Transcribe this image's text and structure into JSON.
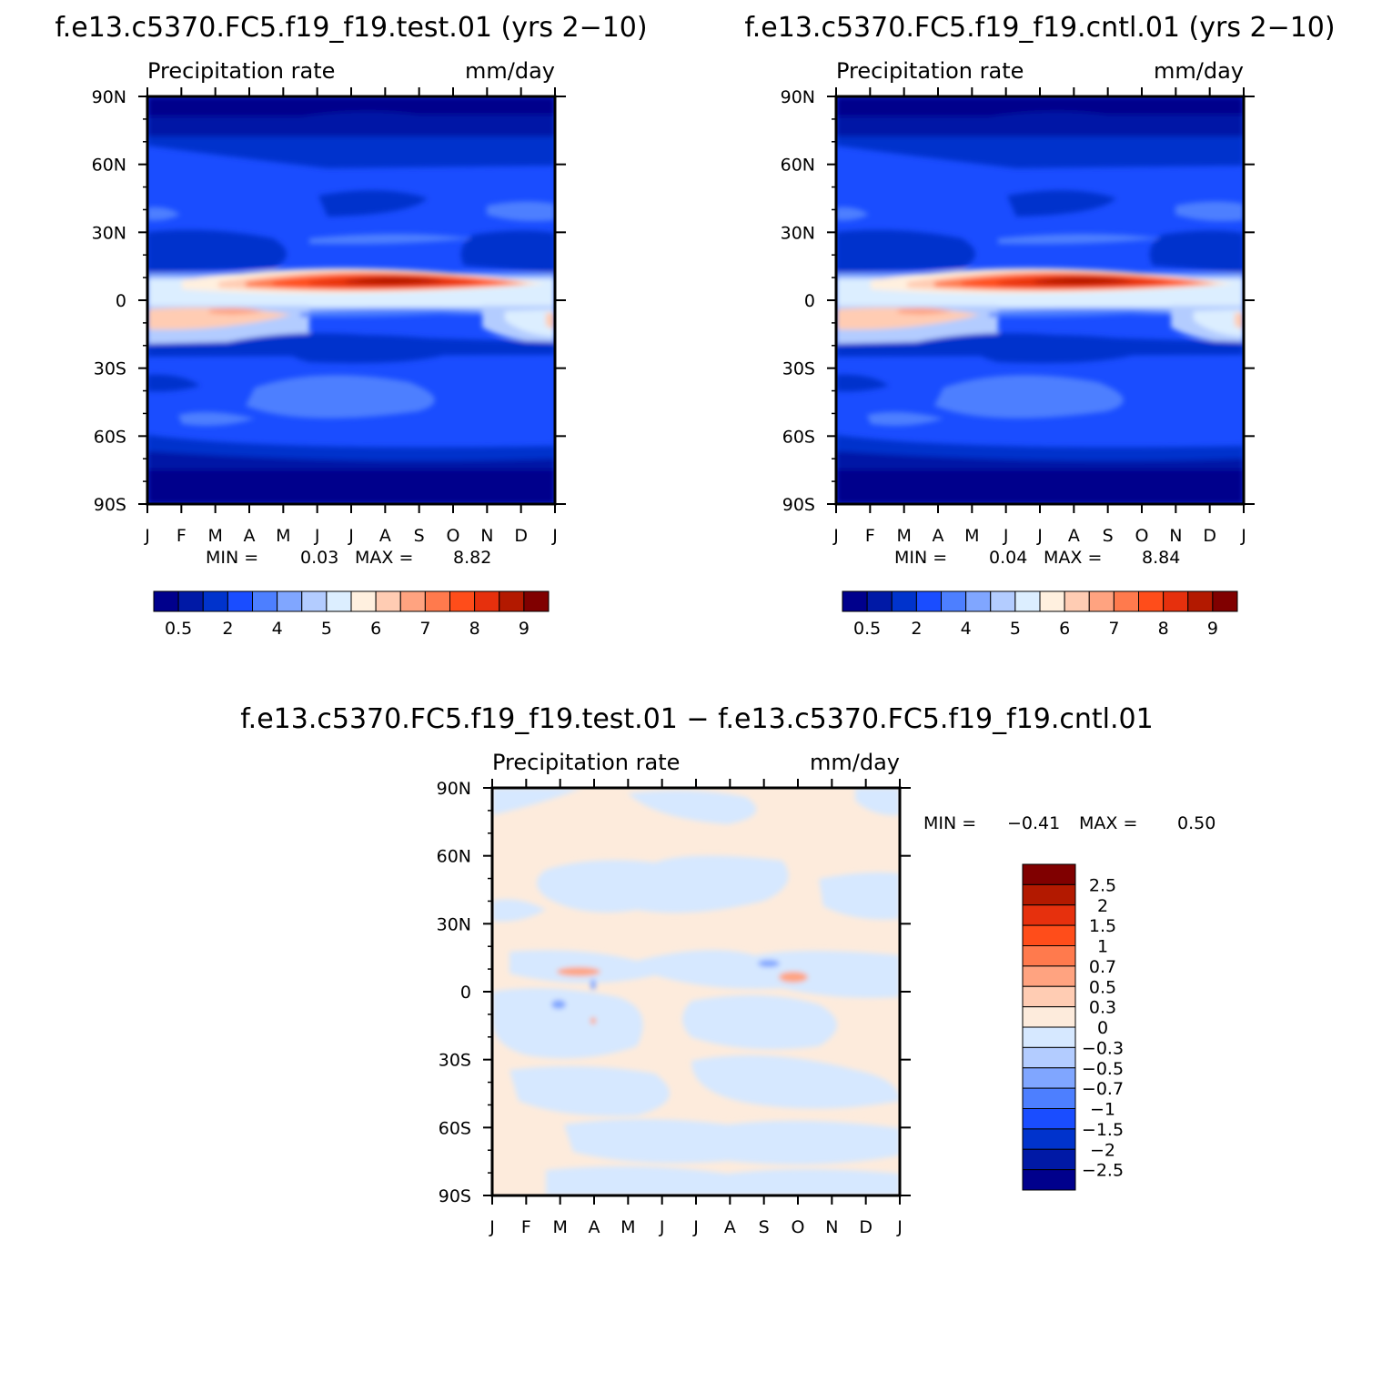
{
  "colors": {
    "precip_palette": [
      "#00008c",
      "#0019a6",
      "#0033cc",
      "#1a4dff",
      "#4d7fff",
      "#80a6ff",
      "#b3ccff",
      "#dceeff",
      "#fff0df",
      "#ffccb3",
      "#ffa380",
      "#ff7a4d",
      "#ff4d1a",
      "#e6300d",
      "#b31900",
      "#800000"
    ],
    "diff_palette": [
      "#800000",
      "#b31900",
      "#e6300d",
      "#ff4d1a",
      "#ff7a4d",
      "#ffa380",
      "#ffccb3",
      "#fdebdc",
      "#d6e8ff",
      "#b3ccff",
      "#80a6ff",
      "#4d7fff",
      "#1a4dff",
      "#0033cc",
      "#0019a6",
      "#00008c"
    ]
  },
  "chart_data": [
    {
      "type": "heatmap",
      "title": "f.e13.c5370.FC5.f19_f19.test.01 (yrs 2−10)",
      "left_subtitle": "Precipitation rate",
      "right_subtitle": "mm/day",
      "x_tick_labels": [
        "J",
        "F",
        "M",
        "A",
        "M",
        "J",
        "J",
        "A",
        "S",
        "O",
        "N",
        "D",
        "J"
      ],
      "y_tick_labels": [
        "90N",
        "60N",
        "30N",
        "0",
        "30S",
        "60S",
        "90S"
      ],
      "y_values": [
        90,
        60,
        30,
        0,
        -30,
        -60,
        -90
      ],
      "stats": {
        "min_label": "MIN =",
        "min": "0.03",
        "max_label": "MAX =",
        "max": "8.82"
      },
      "colorbar": {
        "orientation": "horizontal",
        "labels": [
          "0.5",
          "2",
          "4",
          "5",
          "6",
          "7",
          "8",
          "9"
        ]
      }
    },
    {
      "type": "heatmap",
      "title": "f.e13.c5370.FC5.f19_f19.cntl.01 (yrs 2−10)",
      "left_subtitle": "Precipitation rate",
      "right_subtitle": "mm/day",
      "x_tick_labels": [
        "J",
        "F",
        "M",
        "A",
        "M",
        "J",
        "J",
        "A",
        "S",
        "O",
        "N",
        "D",
        "J"
      ],
      "y_tick_labels": [
        "90N",
        "60N",
        "30N",
        "0",
        "30S",
        "60S",
        "90S"
      ],
      "y_values": [
        90,
        60,
        30,
        0,
        -30,
        -60,
        -90
      ],
      "stats": {
        "min_label": "MIN =",
        "min": "0.04",
        "max_label": "MAX =",
        "max": "8.84"
      },
      "colorbar": {
        "orientation": "horizontal",
        "labels": [
          "0.5",
          "2",
          "4",
          "5",
          "6",
          "7",
          "8",
          "9"
        ]
      }
    },
    {
      "type": "heatmap",
      "title": "f.e13.c5370.FC5.f19_f19.test.01 − f.e13.c5370.FC5.f19_f19.cntl.01",
      "left_subtitle": "Precipitation rate",
      "right_subtitle": "mm/day",
      "x_tick_labels": [
        "J",
        "F",
        "M",
        "A",
        "M",
        "J",
        "J",
        "A",
        "S",
        "O",
        "N",
        "D",
        "J"
      ],
      "y_tick_labels": [
        "90N",
        "60N",
        "30N",
        "0",
        "30S",
        "60S",
        "90S"
      ],
      "y_values": [
        90,
        60,
        30,
        0,
        -30,
        -60,
        -90
      ],
      "stats": {
        "min_label": "MIN =",
        "min": "−0.41",
        "max_label": "MAX =",
        "max": "0.50"
      },
      "colorbar": {
        "orientation": "vertical",
        "labels": [
          "2.5",
          "2",
          "1.5",
          "1",
          "0.7",
          "0.5",
          "0.3",
          "0",
          "−0.3",
          "−0.5",
          "−0.7",
          "−1",
          "−1.5",
          "−2",
          "−2.5"
        ]
      }
    }
  ]
}
